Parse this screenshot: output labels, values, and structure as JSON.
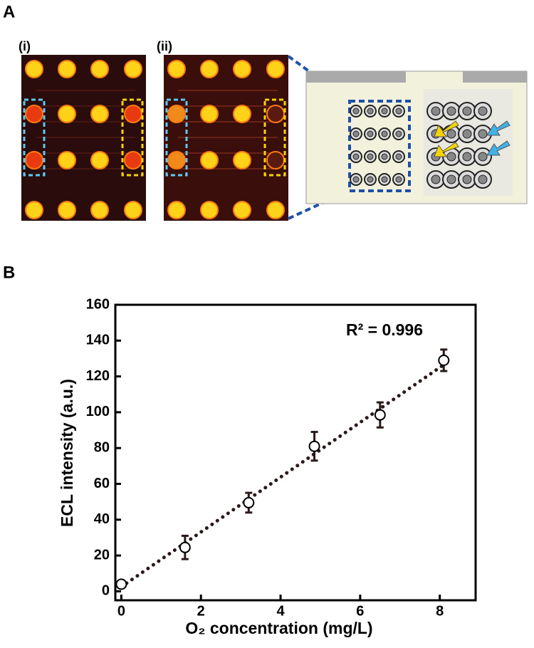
{
  "panels": {
    "panel_a": "A",
    "panel_b": "B",
    "image_labels": [
      "(i)",
      "(ii)"
    ]
  },
  "chart_data": {
    "type": "scatter",
    "x_label": "O₂ concentration (mg/L)",
    "y_label": "ECL intensity (a.u.)",
    "annotation": "R² = 0.996",
    "x": [
      0,
      1.6,
      3.2,
      4.85,
      6.5,
      8.1
    ],
    "series": [
      {
        "name": "ECL intensity",
        "color": "#ffffff",
        "values": [
          4,
          24.5,
          49.5,
          81,
          98.5,
          129
        ],
        "errors": [
          2,
          6.5,
          5.5,
          8,
          7,
          6
        ]
      }
    ],
    "fit": {
      "x": [
        0,
        8.1
      ],
      "values": [
        2.5,
        126.5
      ],
      "color": "#2a1a1a"
    },
    "xlim": [
      -0.15,
      8.9
    ],
    "ylim": [
      -5,
      160
    ],
    "xticks": [
      0,
      2,
      4,
      6,
      8
    ],
    "yticks": [
      0,
      20,
      40,
      60,
      80,
      100,
      120,
      140,
      160
    ]
  }
}
